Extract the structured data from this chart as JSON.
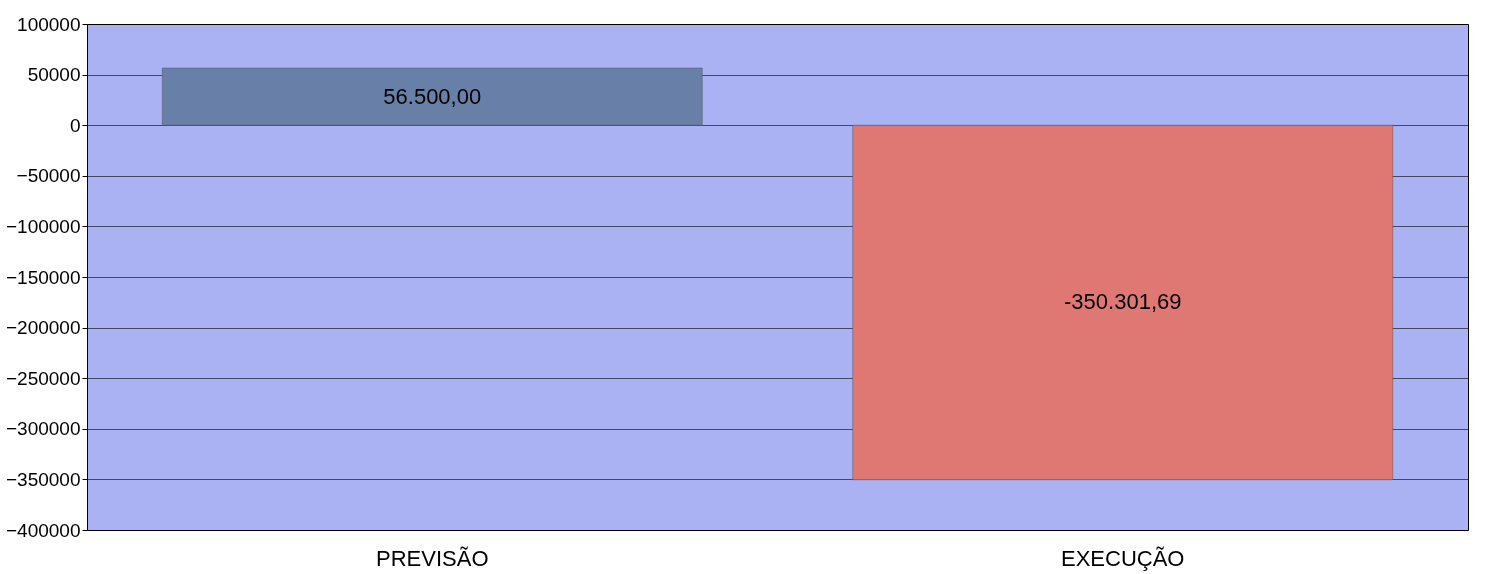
{
  "chart_data": {
    "type": "bar",
    "categories": [
      "PREVISÃO",
      "EXECUÇÃO"
    ],
    "values": [
      56500,
      -350301.69
    ],
    "colors": [
      "#6880a8",
      "#df7873"
    ],
    "value_labels": [
      "56.500,00",
      "-350.301,69"
    ],
    "ylim": [
      -400000,
      100000
    ],
    "yticks": [
      -400000,
      -350000,
      -300000,
      -250000,
      -200000,
      -150000,
      -100000,
      -50000,
      0,
      50000,
      100000
    ],
    "grid": "y"
  }
}
